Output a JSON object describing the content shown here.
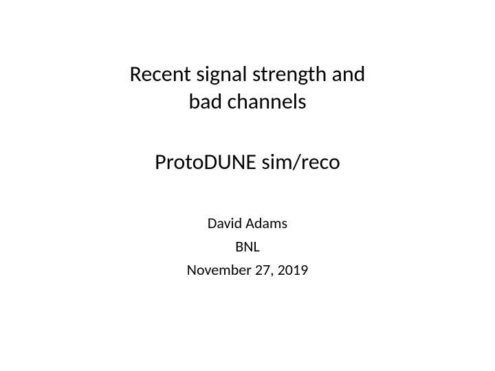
{
  "slide": {
    "title_line1": "Recent signal strength and",
    "title_line2": "bad channels",
    "subtitle": "ProtoDUNE sim/reco",
    "author": "David Adams",
    "institution": "BNL",
    "date": "November 27, 2019",
    "styling": {
      "background_color": "#ffffff",
      "text_color": "#000000",
      "title_fontsize": 32,
      "subtitle_fontsize": 32,
      "author_fontsize": 22,
      "font_family": "Calibri"
    }
  }
}
